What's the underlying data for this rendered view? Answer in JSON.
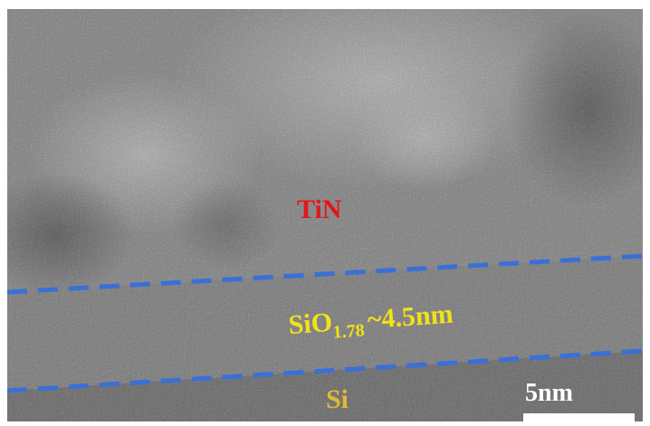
{
  "labels": {
    "top_layer": "TiN",
    "middle_layer": {
      "formula": "SiO",
      "subscript": "1.78",
      "thickness": "~4.5nm"
    },
    "bottom_layer": "Si"
  },
  "scale_bar": {
    "label": "5nm"
  }
}
